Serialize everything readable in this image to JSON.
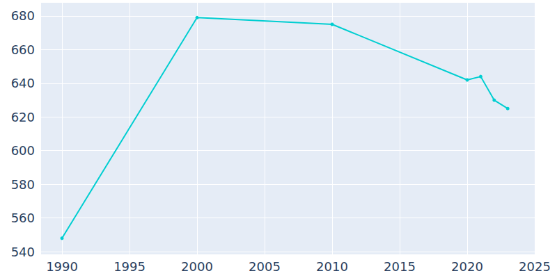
{
  "chart_data": {
    "type": "line",
    "x": [
      1990,
      2000,
      2010,
      2020,
      2021,
      2022,
      2023
    ],
    "values": [
      548,
      679,
      675,
      642,
      644,
      630,
      625
    ],
    "color": "#00ced1",
    "marker": "circle",
    "xlim": [
      1988.4,
      2025
    ],
    "xticks": [
      1990,
      1995,
      2000,
      2005,
      2010,
      2015,
      2020,
      2025
    ],
    "ylim": [
      538.4,
      687.8
    ],
    "yticks": [
      540,
      560,
      580,
      600,
      620,
      640,
      660,
      680
    ],
    "grid": true
  }
}
